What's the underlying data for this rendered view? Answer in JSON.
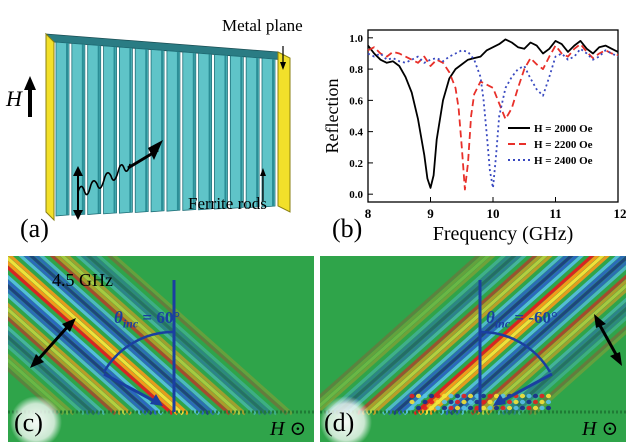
{
  "panel_a": {
    "label": "(a)",
    "metal_plane_label": "Metal plane",
    "ferrite_rods_label": "Ferrite rods",
    "field_symbol": "H",
    "colors": {
      "rod": "#5fc4c8",
      "rod_edge": "#1f6f78",
      "plate": "#f2e02a"
    }
  },
  "panel_b": {
    "label": "(b)"
  },
  "panel_c": {
    "label": "(c)",
    "freq_label": "4.5 GHz",
    "theta_symbol": "θ",
    "theta_sub": "inc",
    "theta_value": " = 60°",
    "field_symbol": "H",
    "field_glyph": "⊙"
  },
  "panel_d": {
    "label": "(d)",
    "theta_symbol": "θ",
    "theta_sub": "inc",
    "theta_value": " = -60°",
    "field_symbol": "H",
    "field_glyph": "⊙"
  },
  "chart_data": {
    "type": "line",
    "title": "",
    "xlabel": "Frequency (GHz)",
    "ylabel": "Reflection",
    "xlim": [
      8,
      12
    ],
    "ylim": [
      -0.05,
      1.05
    ],
    "xticks": [
      8,
      9,
      10,
      11,
      12
    ],
    "yticks": [
      0.0,
      0.2,
      0.4,
      0.6,
      0.8,
      1.0
    ],
    "xtick_labels": [
      "8",
      "9",
      "10",
      "11",
      "12"
    ],
    "ytick_labels": [
      "0.0",
      "0.2",
      "0.4",
      "0.6",
      "0.8",
      "1.0"
    ],
    "legend_position": "center-right",
    "grid": false,
    "series": [
      {
        "name": "H = 2000 Oe",
        "style": "solid",
        "color": "#000000",
        "x": [
          8.0,
          8.1,
          8.2,
          8.3,
          8.4,
          8.5,
          8.6,
          8.7,
          8.8,
          8.9,
          8.95,
          9.0,
          9.05,
          9.1,
          9.2,
          9.3,
          9.4,
          9.5,
          9.6,
          9.7,
          9.8,
          9.9,
          10.0,
          10.1,
          10.2,
          10.3,
          10.4,
          10.5,
          10.6,
          10.7,
          10.8,
          10.9,
          11.0,
          11.1,
          11.2,
          11.3,
          11.4,
          11.5,
          11.6,
          11.7,
          11.8,
          11.9,
          12.0
        ],
        "y": [
          0.95,
          0.9,
          0.86,
          0.84,
          0.85,
          0.82,
          0.75,
          0.65,
          0.48,
          0.25,
          0.1,
          0.04,
          0.12,
          0.35,
          0.6,
          0.74,
          0.8,
          0.83,
          0.86,
          0.87,
          0.88,
          0.92,
          0.94,
          0.96,
          0.99,
          0.97,
          0.94,
          0.93,
          0.97,
          0.95,
          0.9,
          0.93,
          0.98,
          0.96,
          0.91,
          0.95,
          0.98,
          0.93,
          0.9,
          0.94,
          0.95,
          0.93,
          0.91
        ]
      },
      {
        "name": "H = 2200 Oe",
        "style": "dashed",
        "color": "#e8302a",
        "x": [
          8.0,
          8.1,
          8.2,
          8.3,
          8.4,
          8.5,
          8.6,
          8.7,
          8.8,
          8.9,
          9.0,
          9.1,
          9.2,
          9.3,
          9.4,
          9.45,
          9.5,
          9.55,
          9.6,
          9.65,
          9.7,
          9.8,
          9.9,
          10.0,
          10.1,
          10.2,
          10.3,
          10.4,
          10.5,
          10.6,
          10.7,
          10.8,
          10.9,
          11.0,
          11.1,
          11.2,
          11.3,
          11.4,
          11.5,
          11.6,
          11.7,
          11.8,
          11.9,
          12.0
        ],
        "y": [
          0.92,
          0.94,
          0.9,
          0.88,
          0.91,
          0.9,
          0.88,
          0.86,
          0.84,
          0.88,
          0.82,
          0.86,
          0.84,
          0.78,
          0.68,
          0.55,
          0.3,
          0.03,
          0.2,
          0.5,
          0.64,
          0.72,
          0.7,
          0.68,
          0.58,
          0.48,
          0.55,
          0.68,
          0.8,
          0.87,
          0.83,
          0.8,
          0.88,
          0.95,
          0.9,
          0.88,
          0.93,
          0.96,
          0.91,
          0.87,
          0.9,
          0.92,
          0.9,
          0.89
        ]
      },
      {
        "name": "H = 2400 Oe",
        "style": "dotted",
        "color": "#3949c0",
        "x": [
          8.0,
          8.1,
          8.2,
          8.3,
          8.4,
          8.5,
          8.6,
          8.7,
          8.8,
          8.9,
          9.0,
          9.1,
          9.2,
          9.3,
          9.4,
          9.5,
          9.6,
          9.7,
          9.8,
          9.85,
          9.9,
          9.95,
          10.0,
          10.05,
          10.1,
          10.2,
          10.3,
          10.4,
          10.5,
          10.6,
          10.7,
          10.8,
          10.9,
          11.0,
          11.1,
          11.2,
          11.3,
          11.4,
          11.5,
          11.6,
          11.7,
          11.8,
          11.9,
          12.0
        ],
        "y": [
          0.9,
          0.88,
          0.9,
          0.86,
          0.87,
          0.85,
          0.84,
          0.86,
          0.88,
          0.84,
          0.86,
          0.87,
          0.85,
          0.88,
          0.9,
          0.92,
          0.91,
          0.86,
          0.75,
          0.6,
          0.38,
          0.15,
          0.04,
          0.25,
          0.5,
          0.68,
          0.75,
          0.8,
          0.82,
          0.74,
          0.67,
          0.63,
          0.75,
          0.88,
          0.9,
          0.86,
          0.88,
          0.93,
          0.9,
          0.86,
          0.88,
          0.92,
          0.9,
          0.88
        ]
      }
    ]
  }
}
